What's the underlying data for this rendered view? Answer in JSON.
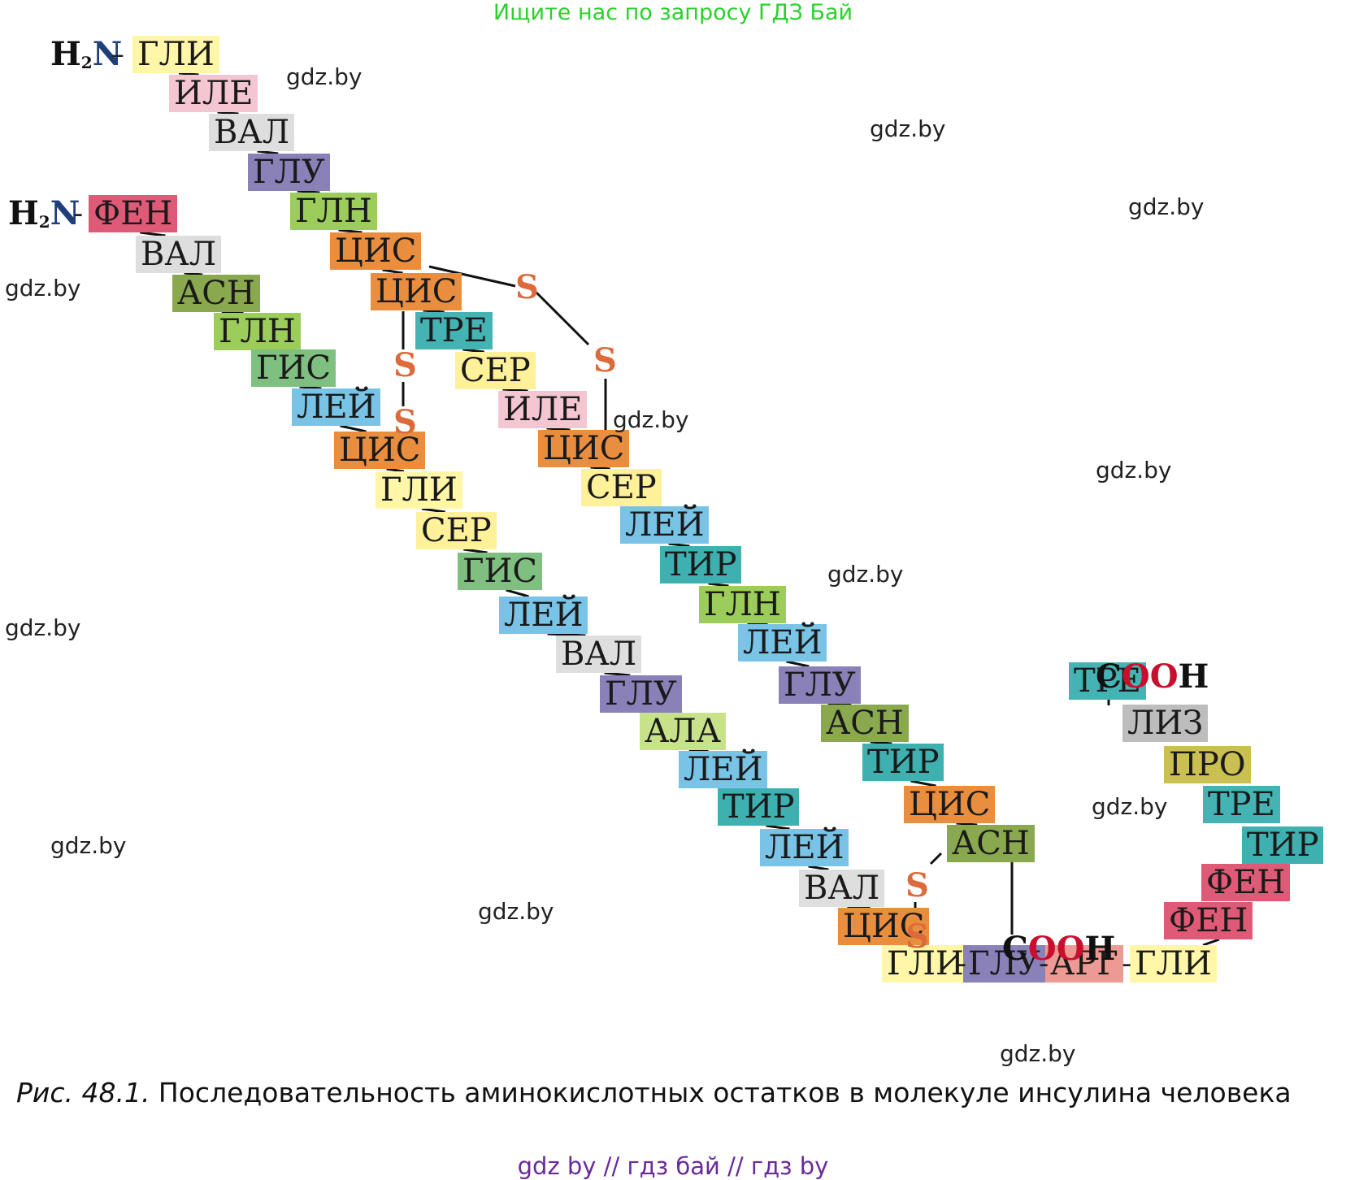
{
  "banner": "Ищите нас по запросу ГДЗ Бай",
  "caption": {
    "prefix": "Рис. 48.1.",
    "text": " Последовательность аминокислотных остатков в молекуле инсулина человека"
  },
  "footer": "gdz by  //  гдз бай  //  гдз by",
  "watermark": "gdz.by",
  "colors": {
    "GLI": "#fff6a8",
    "ILE": "#f4c6d2",
    "VAL": "#dedede",
    "GLU": "#8a81b8",
    "GLN": "#9ccc5a",
    "CIS": "#e98e3e",
    "TRE": "#45b3b3",
    "SER": "#fff09a",
    "LEI": "#78c3e6",
    "TIR": "#3fb0b0",
    "ASN": "#8aa84e",
    "ALA": "#c8e28a",
    "FEN": "#de5a76",
    "GIS": "#7fbf80",
    "ARG": "#ee9a94",
    "PRO": "#cabf52",
    "LIZ": "#bdbdbd",
    "sulfur": "#dc6a3a",
    "nitrogen": "#1f3f7a",
    "oxygen": "#c8102e"
  },
  "chain_a": {
    "n_terminus": "H2N",
    "residues": [
      "ГЛИ",
      "ИЛЕ",
      "ВАЛ",
      "ГЛУ",
      "ГЛН",
      "ЦИС",
      "ЦИС",
      "ТРЕ",
      "СЕР",
      "ИЛЕ",
      "ЦИС",
      "СЕР",
      "ЛЕЙ",
      "ТИР",
      "ГЛН",
      "ЛЕЙ",
      "ГЛУ",
      "АСН",
      "ТИР",
      "ЦИС",
      "АСН"
    ],
    "c_terminus": "COOH"
  },
  "chain_b": {
    "n_terminus": "H2N",
    "residues": [
      "ФЕН",
      "ВАЛ",
      "АСН",
      "ГЛН",
      "ГИС",
      "ЛЕЙ",
      "ЦИС",
      "ГЛИ",
      "СЕР",
      "ГИС",
      "ЛЕЙ",
      "ВАЛ",
      "ГЛУ",
      "АЛА",
      "ЛЕЙ",
      "ТИР",
      "ЛЕЙ",
      "ВАЛ",
      "ЦИС",
      "ГЛИ",
      "ГЛУ",
      "АРГ",
      "ГЛИ",
      "ФЕН",
      "ФЕН",
      "ТИР",
      "ТРЕ",
      "ПРО",
      "ЛИЗ",
      "ТРЕ"
    ],
    "c_terminus": "COOH"
  },
  "disulfide_label": "S"
}
